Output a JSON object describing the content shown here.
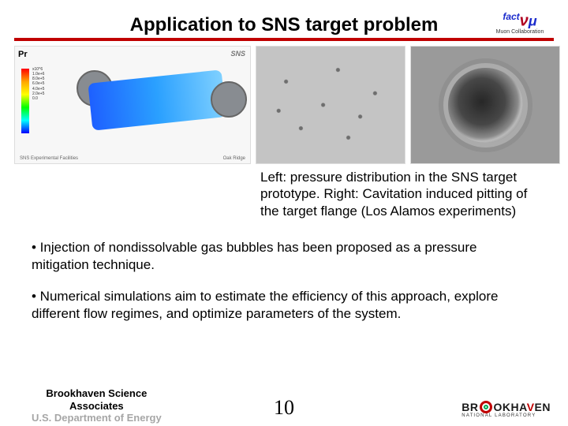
{
  "title": "Application to SNS target problem",
  "top_logo": {
    "sub": "Muon Collaboration"
  },
  "image_row": {
    "img1": {
      "pr_label": "Pr",
      "badge": "SNS",
      "footer_left": "SNS Experimental Facilities",
      "footer_right": "Oak Ridge",
      "legend_scale": "x10^6\n1.0e+6\n8.0e+5\n6.0e+5\n4.0e+5\n2.0e+5\n0.0"
    }
  },
  "caption": "Left: pressure distribution in the SNS target prototype. Right: Cavitation induced pitting of the target flange (Los Alamos experiments)",
  "bullets": [
    "• Injection of nondissolvable gas bubbles has been proposed as a pressure mitigation technique.",
    "• Numerical simulations aim to estimate the efficiency of this approach, explore different flow regimes, and optimize parameters of the system."
  ],
  "footer": {
    "left_line1": "Brookhaven Science",
    "left_line2": "Associates",
    "left_line3": "U.S. Department of Energy",
    "page": "10",
    "right_main": "BROOKHAVEN",
    "right_sub": "NATIONAL LABORATORY"
  },
  "colors": {
    "accent_red": "#c00000",
    "text": "#000000",
    "bg": "#ffffff"
  }
}
